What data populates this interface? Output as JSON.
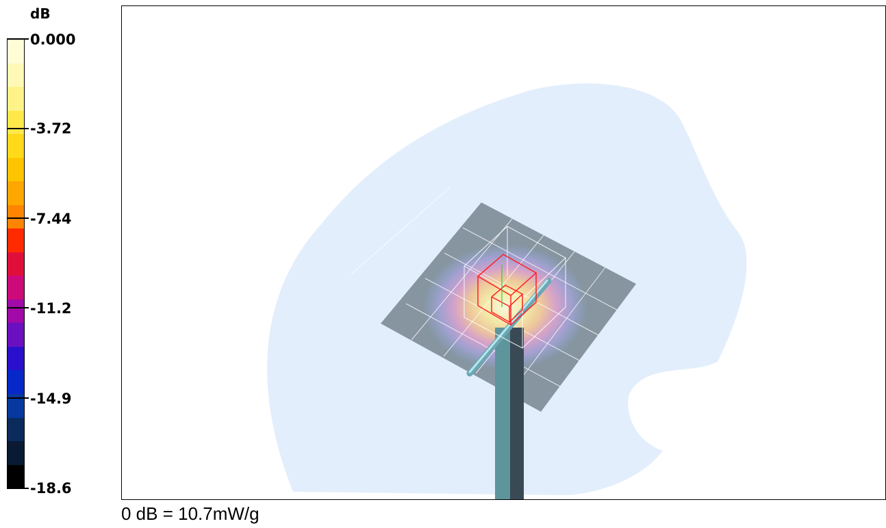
{
  "legend": {
    "unit": "dB",
    "ticks": [
      {
        "label": "0.000"
      },
      {
        "label": "-3.72"
      },
      {
        "label": "-7.44"
      },
      {
        "label": "-11.2"
      },
      {
        "label": "-14.9"
      },
      {
        "label": "-18.6"
      }
    ],
    "colors": [
      "#fffcd6",
      "#fff9b5",
      "#fff388",
      "#ffe94a",
      "#ffd91a",
      "#ffc400",
      "#ffa700",
      "#ff8500",
      "#ff2a00",
      "#e00f3a",
      "#cc0a7a",
      "#a10aa8",
      "#6a10c0",
      "#2a10cc",
      "#0628c8",
      "#0638a0",
      "#0a2b5c",
      "#0a1a33",
      "#000000"
    ]
  },
  "viewport": {
    "background_color": "#ffffff",
    "field_color": "#e2eefc",
    "plate_color": "#7f8d99",
    "mast_colors": [
      "#5e949c",
      "#3a4a55"
    ],
    "cube_color": "#ff2020",
    "grid_color": "#ffffff"
  },
  "caption": "0 dB = 10.7mW/g"
}
